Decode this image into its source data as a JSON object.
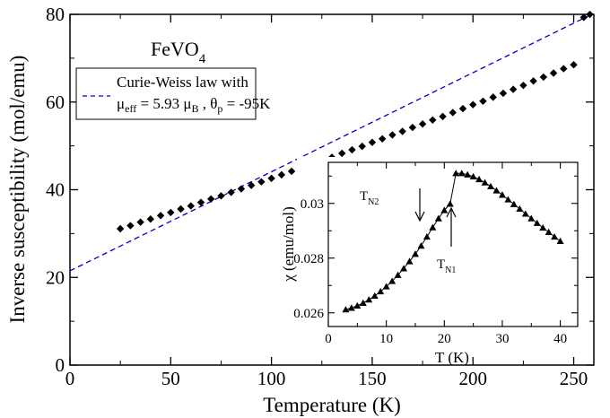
{
  "chart_data": [
    {
      "type": "scatter",
      "compound_label": {
        "base": "FeVO",
        "sub": "4"
      },
      "xlabel": "Temperature (K)",
      "ylabel": "Inverse susceptibility (mol/emu)",
      "xlim": [
        0,
        260
      ],
      "ylim": [
        0,
        80
      ],
      "xticks": [
        0,
        50,
        100,
        150,
        200,
        250
      ],
      "yticks": [
        0,
        20,
        40,
        60,
        80
      ],
      "legend": {
        "placement": "upper-left",
        "line1": "Curie-Weiss law with",
        "mu_sym": "μ",
        "mu_sub": "eff",
        "mu_val": " = 5.93 μ",
        "mu_unit_sub": "B",
        "sep": " , ",
        "theta_sym": "θ",
        "theta_sub": "p",
        "theta_val": " = -95K"
      },
      "series": [
        {
          "marker": "diamond",
          "color": "#000000",
          "x": [
            25,
            30,
            35,
            40,
            45,
            50,
            55,
            60,
            65,
            70,
            75,
            80,
            85,
            90,
            95,
            100,
            105,
            110,
            115,
            120,
            125,
            130,
            135,
            140,
            145,
            150,
            155,
            160,
            165,
            170,
            175,
            180,
            185,
            190,
            195,
            200,
            205,
            210,
            215,
            220,
            225,
            230,
            235,
            240,
            245,
            250,
            255,
            258
          ],
          "y": [
            31.1,
            31.8,
            32.6,
            33.3,
            34.1,
            34.8,
            35.6,
            36.3,
            37.1,
            37.9,
            38.6,
            39.4,
            40.2,
            41.0,
            41.8,
            42.6,
            43.4,
            44.2,
            45.0,
            45.8,
            46.6,
            47.4,
            48.3,
            49.1,
            49.9,
            50.8,
            51.6,
            52.5,
            53.3,
            54.2,
            55.0,
            55.9,
            56.7,
            57.6,
            58.5,
            59.4,
            60.2,
            61.1,
            62.0,
            62.9,
            63.8,
            64.8,
            65.7,
            66.6,
            67.6,
            68.5,
            79.3,
            80.0
          ]
        },
        {
          "marker": "dashed-line",
          "color": "#0000cc",
          "x": [
            0,
            258
          ],
          "y": [
            21.5,
            79.8
          ]
        }
      ]
    },
    {
      "type": "scatter",
      "inset": true,
      "xlabel": "T (K)",
      "ylabel": "χ (emu/mol)",
      "xlim": [
        0,
        43
      ],
      "ylim": [
        0.0255,
        0.0315
      ],
      "xticks": [
        0,
        10,
        20,
        30,
        40
      ],
      "yticks": [
        "0.026",
        "0.028",
        "0.03"
      ],
      "yticks_values": [
        0.026,
        0.028,
        0.03
      ],
      "annotations": [
        {
          "sym": "T",
          "sub": "N2",
          "x": 16.5,
          "y": 0.02965
        },
        {
          "sym": "T",
          "sub": "N1",
          "x": 22.5,
          "y": 0.0302
        }
      ],
      "series": [
        {
          "marker": "triangle",
          "color": "#000000",
          "x": [
            3,
            4,
            5,
            6,
            7,
            8,
            9,
            10,
            11,
            12,
            13,
            14,
            15,
            16,
            17,
            18,
            19,
            20,
            21,
            22,
            23,
            24,
            25,
            26,
            27,
            28,
            29,
            30,
            31,
            32,
            33,
            34,
            35,
            36,
            37,
            38,
            39,
            40
          ],
          "y": [
            0.02612,
            0.02618,
            0.02626,
            0.02636,
            0.02648,
            0.02662,
            0.02678,
            0.02696,
            0.02716,
            0.02738,
            0.02762,
            0.02788,
            0.02815,
            0.02845,
            0.02878,
            0.02912,
            0.02945,
            0.02975,
            0.02998,
            0.0311,
            0.0311,
            0.03105,
            0.03098,
            0.03088,
            0.03076,
            0.03062,
            0.03047,
            0.03031,
            0.03014,
            0.02997,
            0.0298,
            0.02962,
            0.02945,
            0.02928,
            0.02911,
            0.02895,
            0.02878,
            0.02862
          ]
        }
      ]
    }
  ]
}
